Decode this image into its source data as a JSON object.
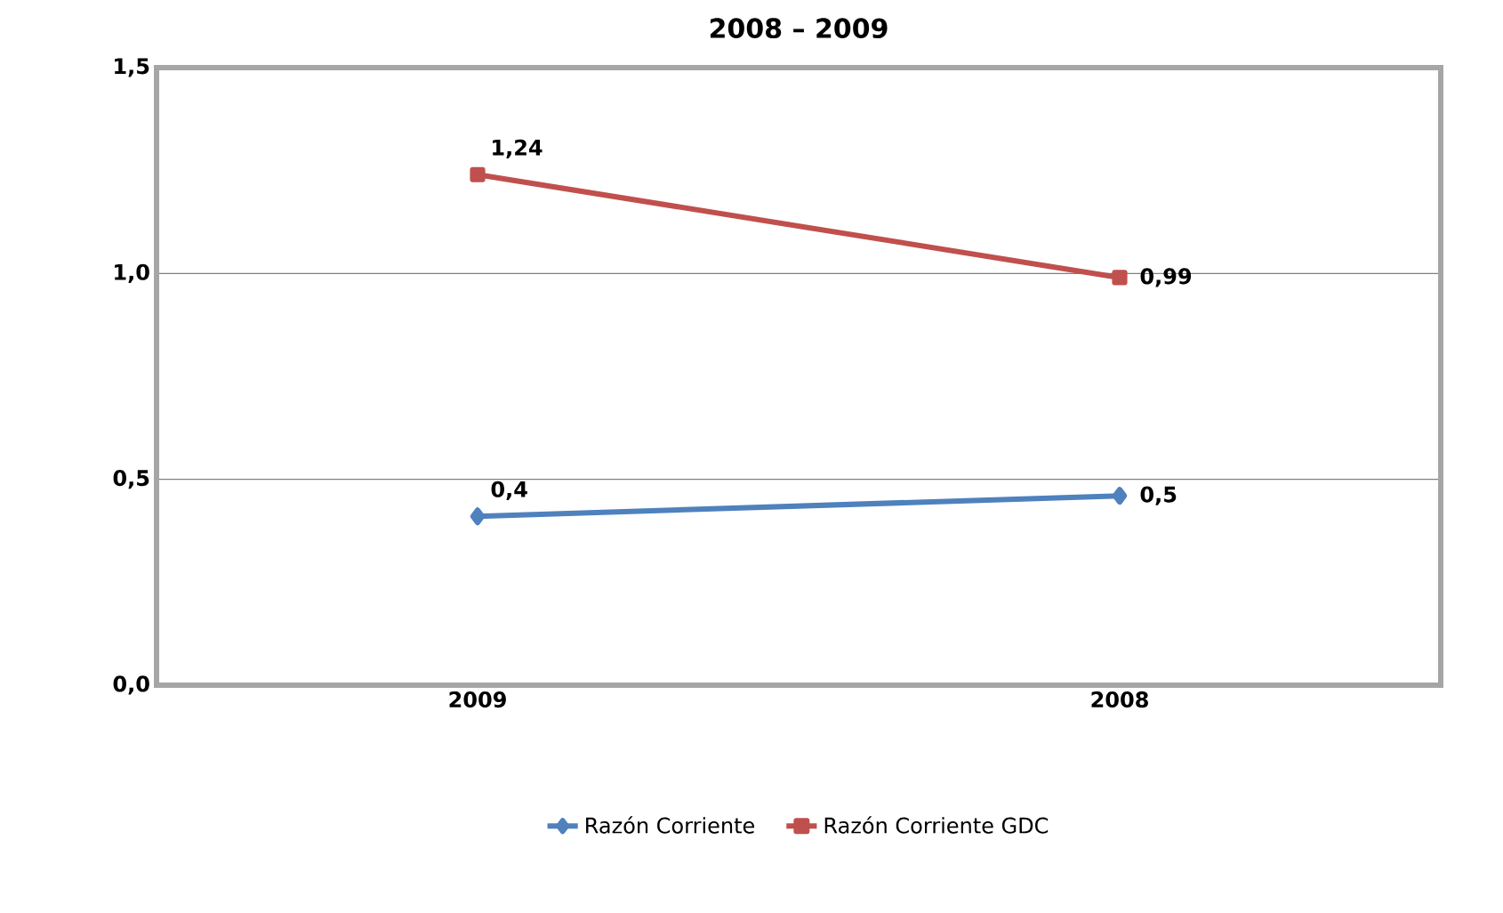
{
  "chart_data": {
    "type": "line",
    "title": "2008 – 2009",
    "categories": [
      "2009",
      "2008"
    ],
    "series": [
      {
        "name": "Razón Corriente",
        "color": "#4f81bd",
        "marker": "diamond",
        "values": [
          0.41,
          0.46
        ],
        "value_labels": [
          "0,4",
          "0,5"
        ]
      },
      {
        "name": "Razón Corriente  GDC",
        "color": "#c0504d",
        "marker": "square",
        "values": [
          1.24,
          0.99
        ],
        "value_labels": [
          "1,24",
          "0,99"
        ]
      }
    ],
    "ylim": [
      0,
      1.5
    ],
    "yticks": [
      {
        "value": 0,
        "label": "0,0"
      },
      {
        "value": 0.5,
        "label": "0,5"
      },
      {
        "value": 1.0,
        "label": "1,0"
      },
      {
        "value": 1.5,
        "label": "1,5"
      }
    ],
    "grid": "y",
    "legend": "bottom",
    "line_style": "solid"
  }
}
